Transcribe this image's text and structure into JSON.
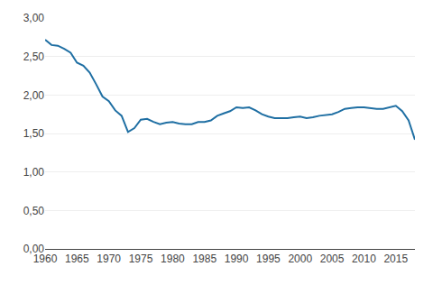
{
  "chart_data": {
    "type": "line",
    "x": [
      1960,
      1961,
      1962,
      1963,
      1964,
      1965,
      1966,
      1967,
      1968,
      1969,
      1970,
      1971,
      1972,
      1973,
      1974,
      1975,
      1976,
      1977,
      1978,
      1979,
      1980,
      1981,
      1982,
      1983,
      1984,
      1985,
      1986,
      1987,
      1988,
      1989,
      1990,
      1991,
      1992,
      1993,
      1994,
      1995,
      1996,
      1997,
      1998,
      1999,
      2000,
      2001,
      2002,
      2003,
      2004,
      2005,
      2006,
      2007,
      2008,
      2009,
      2010,
      2011,
      2012,
      2013,
      2014,
      2015,
      2016,
      2017,
      2018
    ],
    "values": [
      2.72,
      2.65,
      2.64,
      2.6,
      2.55,
      2.42,
      2.38,
      2.29,
      2.14,
      1.98,
      1.92,
      1.8,
      1.73,
      1.52,
      1.57,
      1.68,
      1.69,
      1.65,
      1.62,
      1.64,
      1.65,
      1.63,
      1.62,
      1.62,
      1.65,
      1.65,
      1.67,
      1.73,
      1.76,
      1.79,
      1.84,
      1.83,
      1.84,
      1.8,
      1.75,
      1.72,
      1.7,
      1.7,
      1.7,
      1.71,
      1.72,
      1.7,
      1.71,
      1.73,
      1.74,
      1.75,
      1.78,
      1.82,
      1.83,
      1.84,
      1.84,
      1.83,
      1.82,
      1.82,
      1.84,
      1.86,
      1.79,
      1.67,
      1.42
    ],
    "color": "#1f6fa3",
    "xlim": [
      1960,
      2018
    ],
    "ylim": [
      0.0,
      3.0
    ],
    "xticks": [
      1960,
      1965,
      1970,
      1975,
      1980,
      1985,
      1990,
      1995,
      2000,
      2005,
      2010,
      2015
    ],
    "yticks": [
      {
        "value": 0.0,
        "label": "0,00"
      },
      {
        "value": 0.5,
        "label": "0,50"
      },
      {
        "value": 1.0,
        "label": "1,00"
      },
      {
        "value": 1.5,
        "label": "1,50"
      },
      {
        "value": 2.0,
        "label": "2,00"
      },
      {
        "value": 2.5,
        "label": "2,50"
      },
      {
        "value": 3.0,
        "label": "3,00"
      }
    ],
    "grid": true
  }
}
